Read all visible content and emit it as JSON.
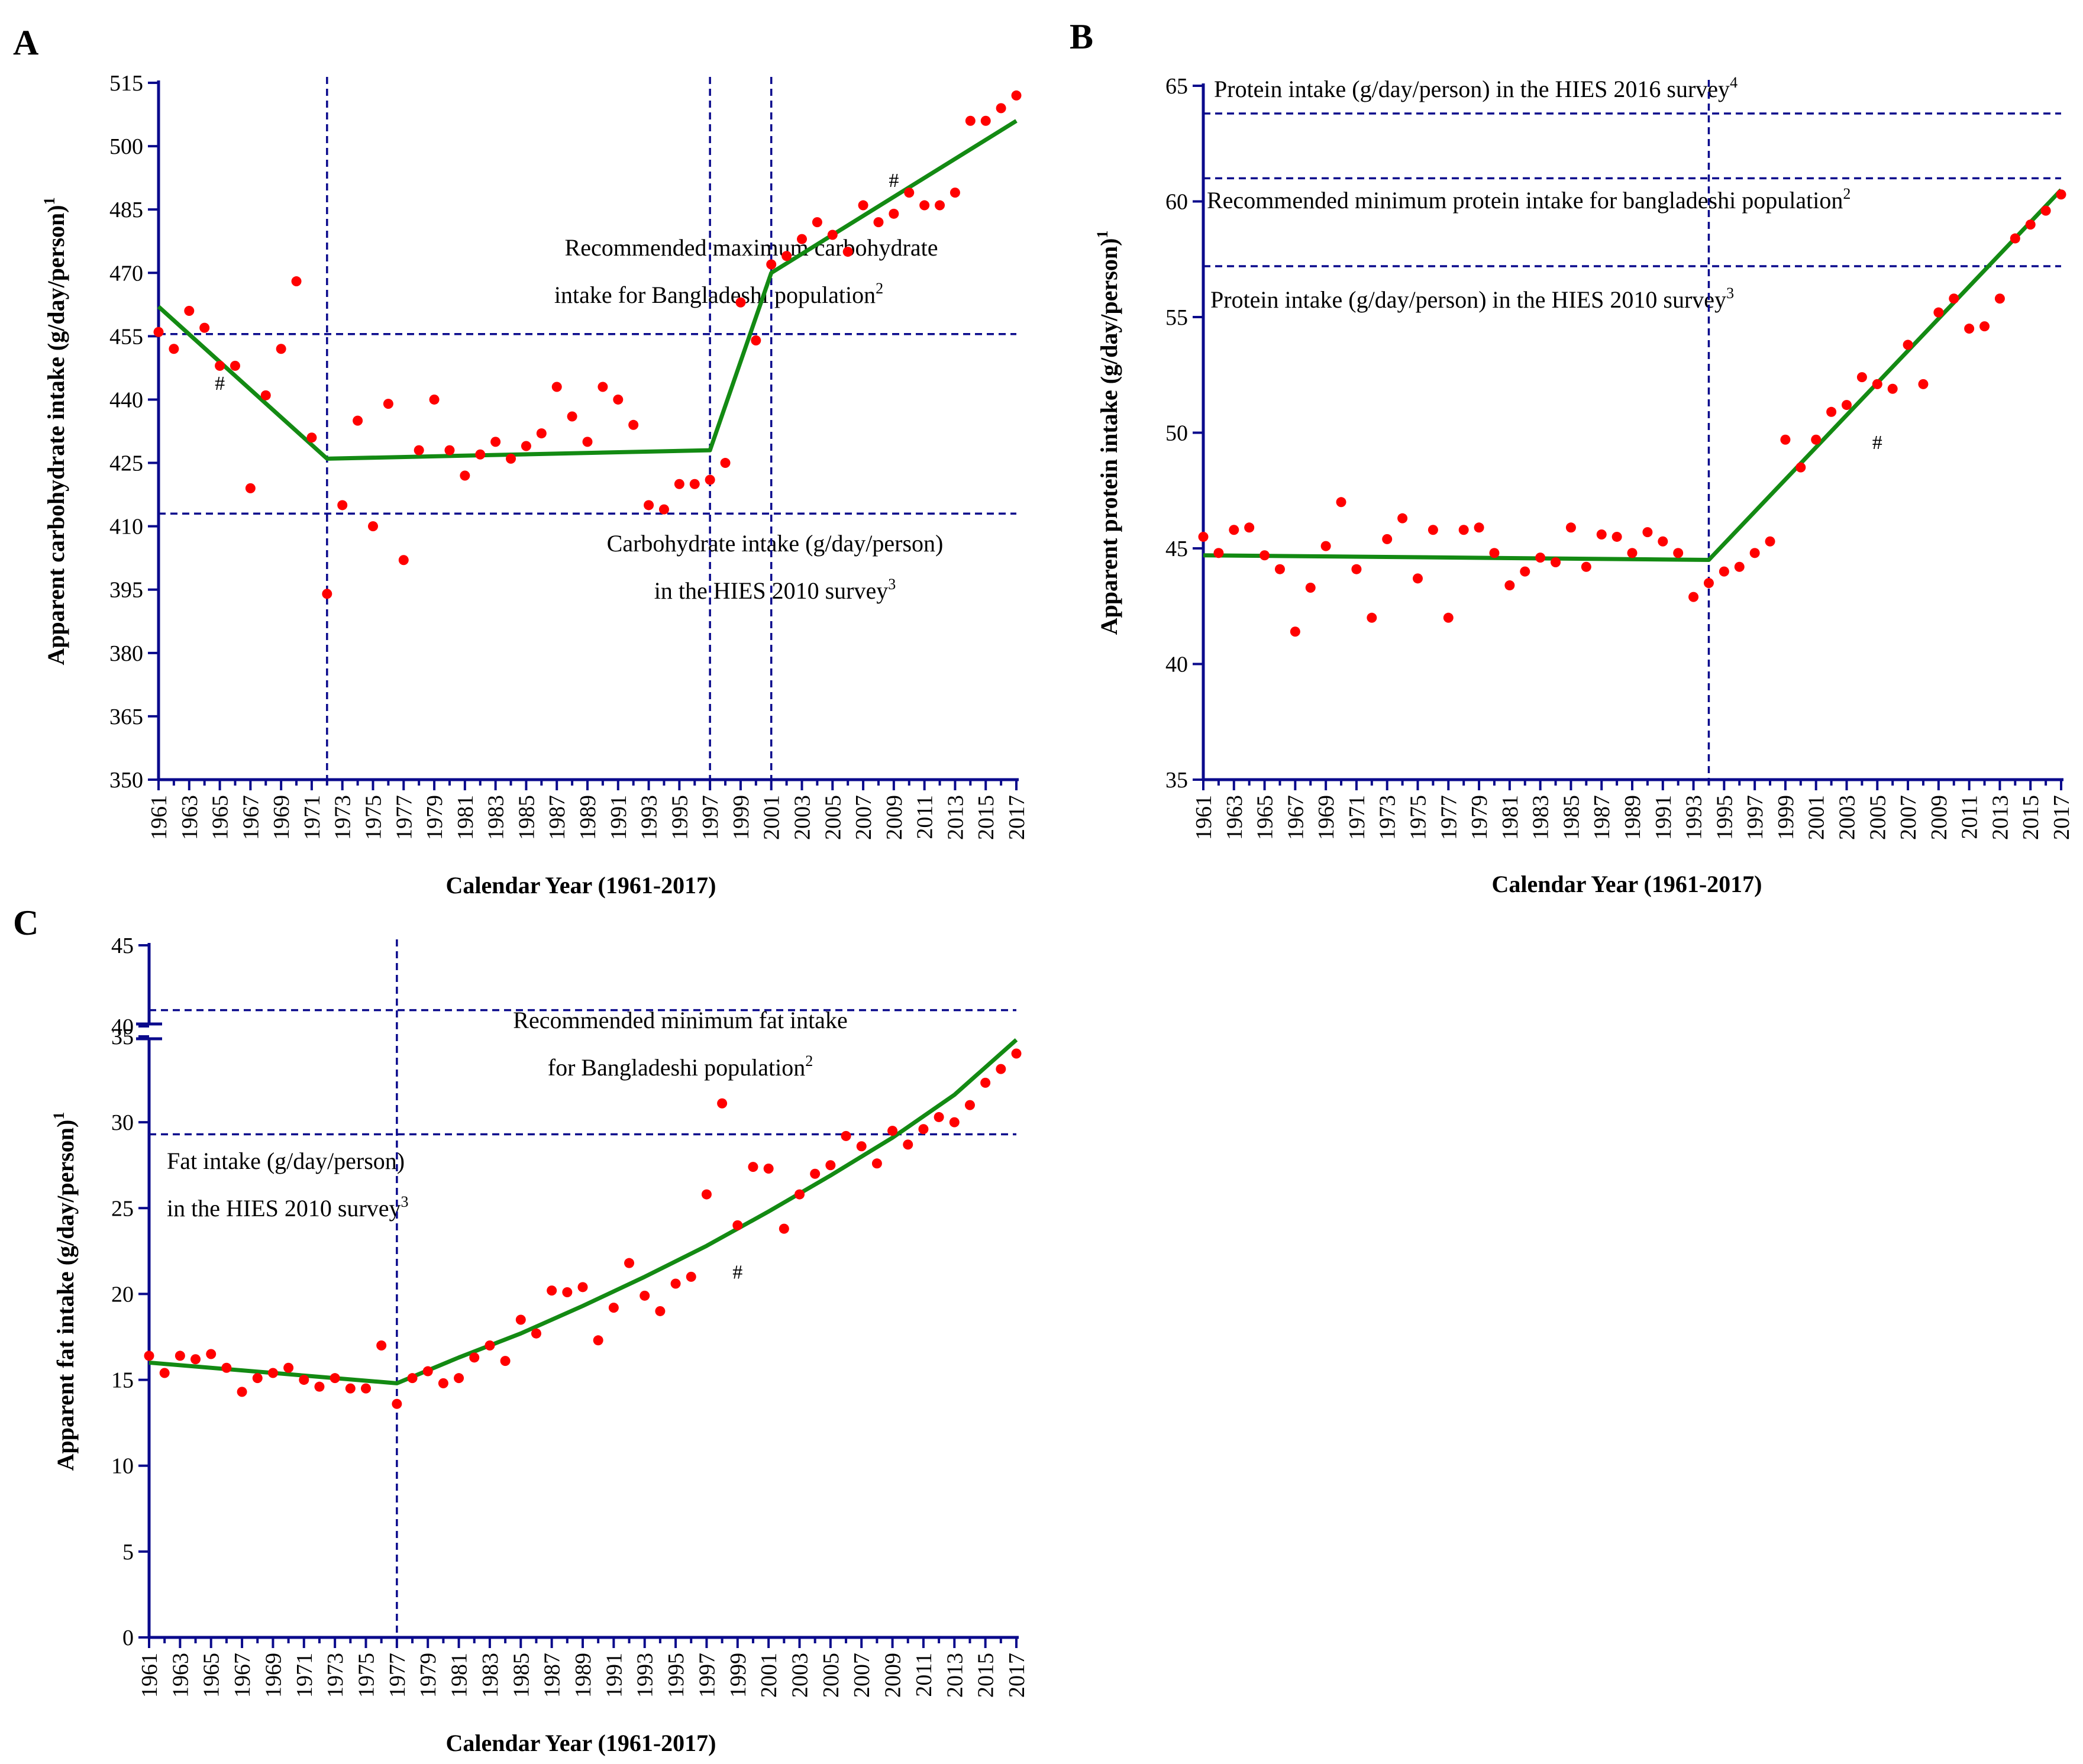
{
  "colors": {
    "axis": "#0a0a8c",
    "guide": "#0a0a8c",
    "points": "#ff0000",
    "trend": "#138a13",
    "text": "#000000"
  },
  "chart_data": [
    {
      "panel": "A",
      "type": "scatter",
      "title": "",
      "xlabel": "Calendar Year (1961-2017)",
      "ylabel": "Apparent carbohydrate intake (g/day/person)",
      "ylabel_sup": "1",
      "xlim": [
        1961,
        2017
      ],
      "ylim": [
        350,
        515
      ],
      "yticks": [
        350,
        365,
        380,
        395,
        410,
        425,
        440,
        455,
        470,
        485,
        500,
        515
      ],
      "xtick_labels": [
        "1961",
        "1963",
        "1965",
        "1967",
        "1969",
        "1971",
        "1973",
        "1975",
        "1977",
        "1979",
        "1981",
        "1983",
        "1985",
        "1987",
        "1989",
        "1991",
        "1993",
        "1995",
        "1997",
        "1999",
        "2001",
        "2003",
        "2005",
        "2007",
        "2009",
        "2011",
        "2013",
        "2015",
        "2017"
      ],
      "x": [
        1961,
        1962,
        1963,
        1964,
        1965,
        1966,
        1967,
        1968,
        1969,
        1970,
        1971,
        1972,
        1973,
        1974,
        1975,
        1976,
        1977,
        1978,
        1979,
        1980,
        1981,
        1982,
        1983,
        1984,
        1985,
        1986,
        1987,
        1988,
        1989,
        1990,
        1991,
        1992,
        1993,
        1994,
        1995,
        1996,
        1997,
        1998,
        1999,
        2000,
        2001,
        2002,
        2003,
        2004,
        2005,
        2006,
        2007,
        2008,
        2009,
        2010,
        2011,
        2012,
        2013,
        2014,
        2015,
        2016,
        2017
      ],
      "values": [
        456,
        452,
        461,
        457,
        448,
        448,
        419,
        441,
        452,
        468,
        431,
        394,
        415,
        435,
        410,
        439,
        402,
        428,
        440,
        428,
        422,
        427,
        430,
        426,
        429,
        432,
        443,
        436,
        430,
        443,
        440,
        434,
        415,
        414,
        420,
        420,
        421,
        425,
        463,
        454,
        472,
        474,
        478,
        482,
        479,
        475,
        486,
        482,
        484,
        489,
        486,
        486,
        489,
        506,
        506,
        509,
        512
      ],
      "trend": [
        [
          1961,
          462
        ],
        [
          1972,
          426
        ],
        [
          1997,
          428
        ],
        [
          2001,
          470
        ],
        [
          2017,
          506
        ]
      ],
      "vlines": [
        1972,
        1997,
        2001
      ],
      "hlines": [
        455.5,
        413
      ],
      "hash_marks": [
        {
          "x": 1965,
          "y": 444
        },
        {
          "x": 2009,
          "y": 492
        }
      ],
      "annotations": [
        {
          "lines": [
            "Recommended maximum carbohydrate",
            "intake for Bangladeshi population"
          ],
          "sup": "2"
        },
        {
          "lines": [
            "Carbohydrate intake (g/day/person)",
            "in the HIES 2010 survey"
          ],
          "sup": "3"
        }
      ]
    },
    {
      "panel": "B",
      "type": "scatter",
      "title": "",
      "xlabel": "Calendar Year (1961-2017)",
      "ylabel": "Apparent protein intake (g/day/person)",
      "ylabel_sup": "1",
      "xlim": [
        1961,
        2017
      ],
      "ylim": [
        35,
        65
      ],
      "yticks": [
        35,
        40,
        45,
        50,
        55,
        60,
        65
      ],
      "xtick_labels": [
        "1961",
        "1963",
        "1965",
        "1967",
        "1969",
        "1971",
        "1973",
        "1975",
        "1977",
        "1979",
        "1981",
        "1983",
        "1985",
        "1987",
        "1989",
        "1991",
        "1993",
        "1995",
        "1997",
        "1999",
        "2001",
        "2003",
        "2005",
        "2007",
        "2009",
        "2011",
        "2013",
        "2015",
        "2017"
      ],
      "x": [
        1961,
        1962,
        1963,
        1964,
        1965,
        1966,
        1967,
        1968,
        1969,
        1970,
        1971,
        1972,
        1973,
        1974,
        1975,
        1976,
        1977,
        1978,
        1979,
        1980,
        1981,
        1982,
        1983,
        1984,
        1985,
        1986,
        1987,
        1988,
        1989,
        1990,
        1991,
        1992,
        1993,
        1994,
        1995,
        1996,
        1997,
        1998,
        1999,
        2000,
        2001,
        2002,
        2003,
        2004,
        2005,
        2006,
        2007,
        2008,
        2009,
        2010,
        2011,
        2012,
        2013,
        2014,
        2015,
        2016,
        2017
      ],
      "values": [
        45.5,
        44.8,
        45.8,
        45.9,
        44.7,
        44.1,
        41.4,
        43.3,
        45.1,
        47.0,
        44.1,
        42.0,
        45.4,
        46.3,
        43.7,
        45.8,
        42.0,
        45.8,
        45.9,
        44.8,
        43.4,
        44.0,
        44.6,
        44.4,
        45.9,
        44.2,
        45.6,
        45.5,
        44.8,
        45.7,
        45.3,
        44.8,
        42.9,
        43.5,
        44.0,
        44.2,
        44.8,
        45.3,
        49.7,
        48.5,
        49.7,
        50.9,
        51.2,
        52.4,
        52.1,
        51.9,
        53.8,
        52.1,
        55.2,
        55.8,
        54.5,
        54.6,
        55.8,
        58.4,
        59.0,
        59.6,
        60.3
      ],
      "trend": [
        [
          1961,
          44.7
        ],
        [
          1994,
          44.5
        ],
        [
          2017,
          60.5
        ]
      ],
      "vlines": [
        1994
      ],
      "hlines": [
        63.8,
        61.0,
        57.2
      ],
      "hash_marks": [
        {
          "x": 2005,
          "y": 49.6
        }
      ],
      "annotations": [
        {
          "lines": [
            "Protein intake (g/day/person) in the HIES 2016 survey"
          ],
          "sup": "4"
        },
        {
          "lines": [
            "Recommended minimum protein intake for bangladeshi population"
          ],
          "sup": "2"
        },
        {
          "lines": [
            "Protein intake (g/day/person) in the HIES 2010 survey"
          ],
          "sup": "3"
        }
      ]
    },
    {
      "panel": "C",
      "type": "scatter",
      "title": "",
      "xlabel": "Calendar Year (1961-2017)",
      "ylabel": "Apparent fat intake (g/day/person)",
      "ylabel_sup": "1",
      "xlim": [
        1961,
        2017
      ],
      "ylim": [
        0,
        45
      ],
      "axis_break": [
        35,
        40
      ],
      "yticks": [
        0,
        5,
        10,
        15,
        20,
        25,
        30,
        35,
        40,
        45
      ],
      "xtick_labels": [
        "1961",
        "1963",
        "1965",
        "1967",
        "1969",
        "1971",
        "1973",
        "1975",
        "1977",
        "1979",
        "1981",
        "1983",
        "1985",
        "1987",
        "1989",
        "1991",
        "1993",
        "1995",
        "1997",
        "1999",
        "2001",
        "2003",
        "2005",
        "2007",
        "2009",
        "2011",
        "2013",
        "2015",
        "2017"
      ],
      "x": [
        1961,
        1962,
        1963,
        1964,
        1965,
        1966,
        1967,
        1968,
        1969,
        1970,
        1971,
        1972,
        1973,
        1974,
        1975,
        1976,
        1977,
        1978,
        1979,
        1980,
        1981,
        1982,
        1983,
        1984,
        1985,
        1986,
        1987,
        1988,
        1989,
        1990,
        1991,
        1992,
        1993,
        1994,
        1995,
        1996,
        1997,
        1998,
        1999,
        2000,
        2001,
        2002,
        2003,
        2004,
        2005,
        2006,
        2007,
        2008,
        2009,
        2010,
        2011,
        2012,
        2013,
        2014,
        2015,
        2016,
        2017
      ],
      "values": [
        16.4,
        15.4,
        16.4,
        16.2,
        16.5,
        15.7,
        14.3,
        15.1,
        15.4,
        15.7,
        15.0,
        14.6,
        15.1,
        14.5,
        14.5,
        17.0,
        13.6,
        15.1,
        15.5,
        14.8,
        15.1,
        16.3,
        17.0,
        16.1,
        18.5,
        17.7,
        20.2,
        20.1,
        20.4,
        17.3,
        19.2,
        21.8,
        19.9,
        19.0,
        20.6,
        21.0,
        25.8,
        31.1,
        24.0,
        27.4,
        27.3,
        23.8,
        25.8,
        27.0,
        27.5,
        29.2,
        28.6,
        27.6,
        29.5,
        28.7,
        29.6,
        30.3,
        30.0,
        31.0,
        32.3,
        33.1,
        34.0
      ],
      "trend": [
        [
          1961,
          16.0
        ],
        [
          1977,
          14.8
        ],
        [
          1981,
          16.3
        ],
        [
          1985,
          17.7
        ],
        [
          1989,
          19.3
        ],
        [
          1993,
          21.0
        ],
        [
          1997,
          22.8
        ],
        [
          2001,
          24.8
        ],
        [
          2005,
          26.9
        ],
        [
          2009,
          29.1
        ],
        [
          2013,
          31.6
        ],
        [
          2017,
          34.8
        ]
      ],
      "vlines": [
        1977
      ],
      "hlines": [
        41.0,
        29.3
      ],
      "hash_marks": [
        {
          "x": 1999,
          "y": 21.3
        }
      ],
      "annotations": [
        {
          "lines": [
            "Recommended minimum fat intake",
            "for Bangladeshi population"
          ],
          "sup": "2"
        },
        {
          "lines": [
            "Fat intake (g/day/person)",
            "in the HIES 2010 survey"
          ],
          "sup": "3"
        }
      ]
    }
  ]
}
